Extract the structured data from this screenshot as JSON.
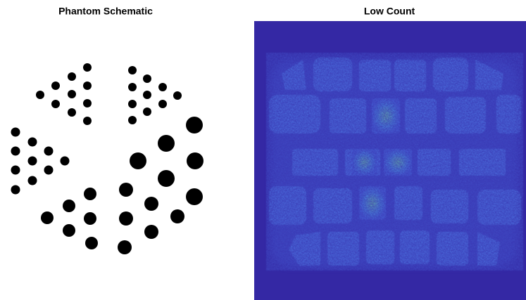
{
  "panels": [
    {
      "title": "Phantom Schematic"
    },
    {
      "title": "Low Count"
    }
  ]
}
